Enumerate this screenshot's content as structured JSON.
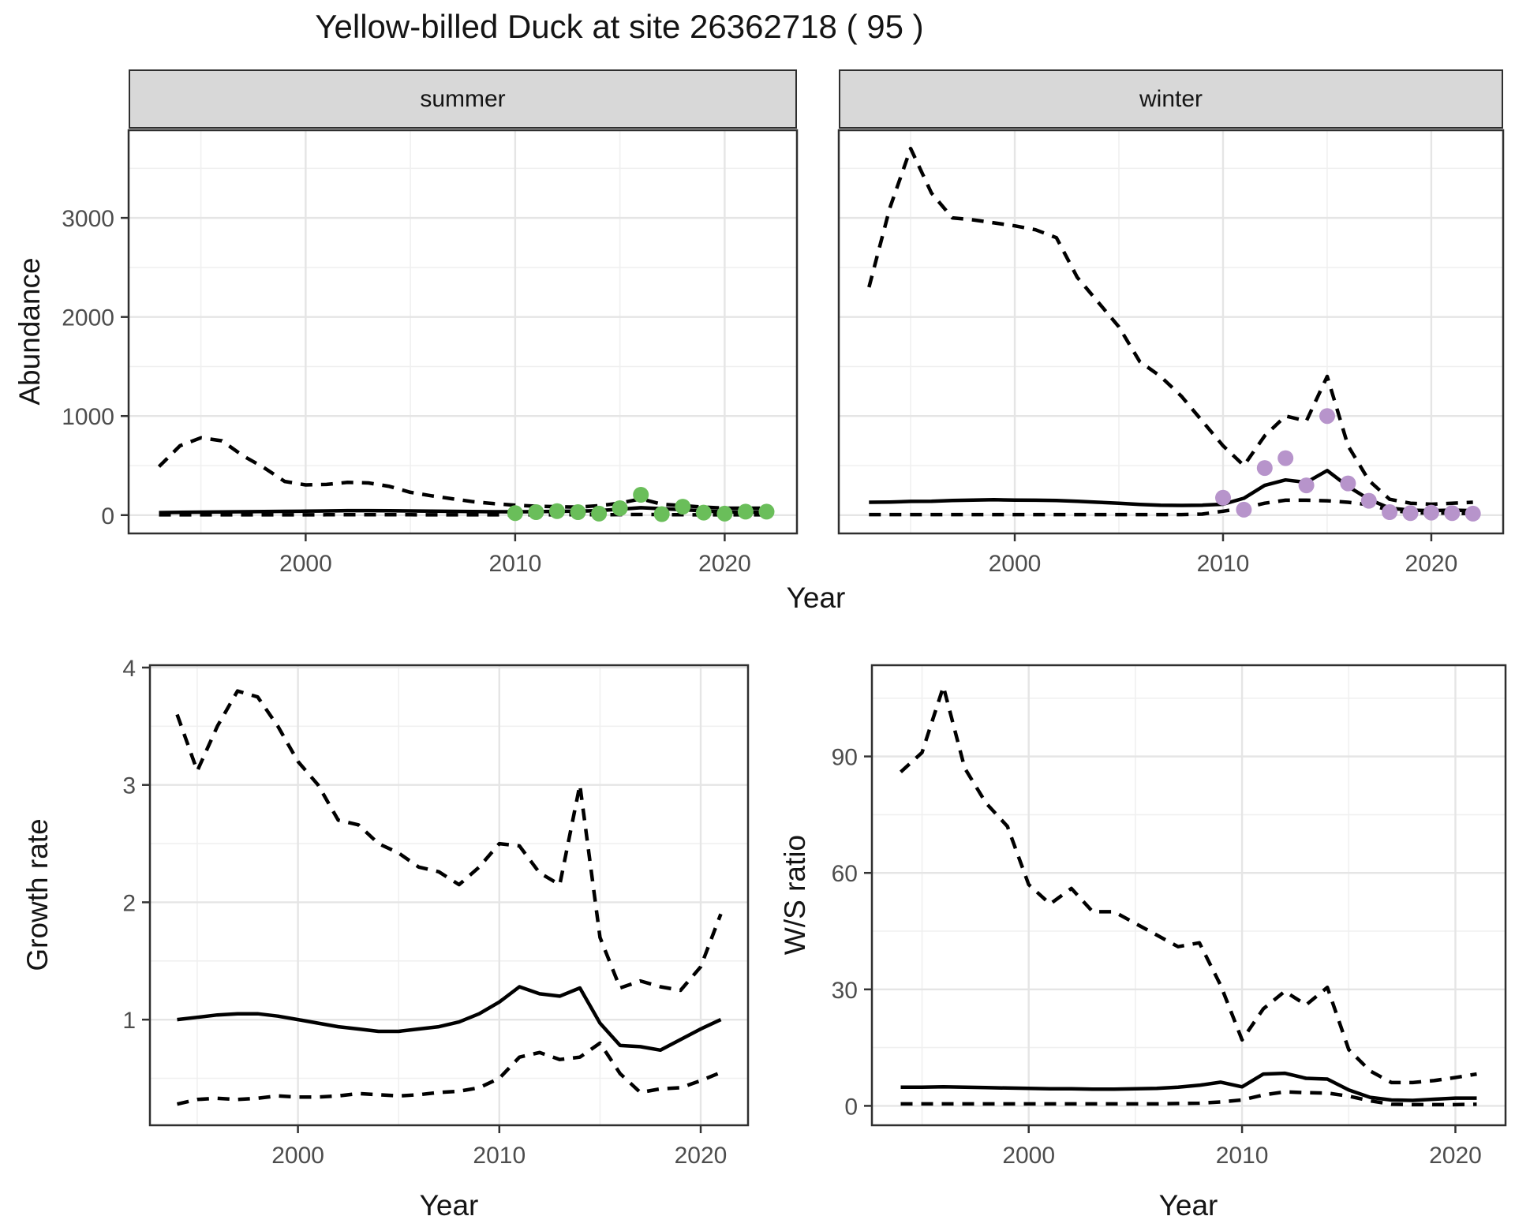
{
  "title": "Yellow-billed Duck at site 26362718 ( 95 )",
  "facets": {
    "summer_label": "summer",
    "winter_label": "winter"
  },
  "axes": {
    "abundance_label": "Abundance",
    "year_label": "Year",
    "growth_label": "Growth rate",
    "ws_label": "W/S ratio"
  },
  "colors": {
    "line": "#000000",
    "summer_points": "#6abe5a",
    "winter_points": "#b794cb",
    "grid_major": "#e5e5e5",
    "grid_minor": "#f0f0f0",
    "panel_border": "#2f2f2f",
    "tick": "#333333",
    "tick_text": "#4d4d4d",
    "strip_bg": "#d8d8d8"
  },
  "chart_data": [
    {
      "id": "abundance-summer",
      "type": "line",
      "title": "summer",
      "xlabel": "Year",
      "ylabel": "Abundance",
      "x": [
        1993,
        1994,
        1995,
        1996,
        1997,
        1998,
        1999,
        2000,
        2001,
        2002,
        2003,
        2004,
        2005,
        2006,
        2007,
        2008,
        2009,
        2010,
        2011,
        2012,
        2013,
        2014,
        2015,
        2016,
        2017,
        2018,
        2019,
        2020,
        2021,
        2022
      ],
      "xlim": [
        1991.55,
        2023.45
      ],
      "xticks": [
        2000,
        2010,
        2020
      ],
      "xminor": [
        1995,
        2005,
        2015
      ],
      "ylim": [
        -185,
        3885
      ],
      "yticks": [
        0,
        1000,
        2000,
        3000
      ],
      "yminor": [
        500,
        1500,
        2500,
        3500
      ],
      "grid": true,
      "legend": "none",
      "series": [
        {
          "name": "upper-ci",
          "style": "dashed",
          "values": [
            490,
            700,
            780,
            750,
            600,
            480,
            340,
            305,
            310,
            330,
            325,
            290,
            230,
            195,
            165,
            135,
            115,
            100,
            90,
            85,
            80,
            95,
            120,
            165,
            110,
            95,
            80,
            70,
            70,
            70
          ]
        },
        {
          "name": "predicted",
          "style": "solid",
          "values": [
            25,
            28,
            30,
            32,
            34,
            36,
            38,
            40,
            42,
            45,
            45,
            44,
            42,
            40,
            38,
            36,
            34,
            33,
            35,
            38,
            40,
            45,
            60,
            75,
            65,
            55,
            42,
            32,
            30,
            32
          ]
        },
        {
          "name": "lower-ci",
          "style": "dashed",
          "values": [
            3,
            3,
            3,
            3,
            3,
            3,
            3,
            3,
            4,
            4,
            4,
            4,
            4,
            3,
            3,
            3,
            3,
            3,
            3,
            4,
            4,
            4,
            5,
            6,
            5,
            4,
            3,
            3,
            3,
            3
          ]
        },
        {
          "name": "observed-counts",
          "style": "points",
          "color": "#6abe5a",
          "x": [
            2010,
            2011,
            2012,
            2013,
            2014,
            2015,
            2016,
            2017,
            2018,
            2019,
            2020,
            2021,
            2022
          ],
          "values": [
            20,
            30,
            40,
            30,
            15,
            70,
            205,
            10,
            85,
            25,
            15,
            35,
            35
          ]
        }
      ]
    },
    {
      "id": "abundance-winter",
      "type": "line",
      "title": "winter",
      "xlabel": "Year",
      "ylabel": "Abundance",
      "x": [
        1993,
        1994,
        1995,
        1996,
        1997,
        1998,
        1999,
        2000,
        2001,
        2002,
        2003,
        2004,
        2005,
        2006,
        2007,
        2008,
        2009,
        2010,
        2011,
        2012,
        2013,
        2014,
        2015,
        2016,
        2017,
        2018,
        2019,
        2020,
        2021,
        2022
      ],
      "xlim": [
        1991.55,
        2023.45
      ],
      "xticks": [
        2000,
        2010,
        2020
      ],
      "xminor": [
        1995,
        2005,
        2015
      ],
      "ylim": [
        -185,
        3885
      ],
      "yticks": [
        0,
        1000,
        2000,
        3000
      ],
      "yminor": [
        500,
        1500,
        2500,
        3500
      ],
      "grid": true,
      "legend": "none",
      "series": [
        {
          "name": "upper-ci",
          "style": "dashed",
          "values": [
            2300,
            3100,
            3700,
            3250,
            3000,
            2980,
            2950,
            2920,
            2880,
            2800,
            2400,
            2150,
            1900,
            1550,
            1400,
            1200,
            950,
            700,
            500,
            800,
            1000,
            950,
            1400,
            700,
            350,
            160,
            120,
            110,
            120,
            130
          ]
        },
        {
          "name": "predicted",
          "style": "solid",
          "values": [
            130,
            132,
            138,
            140,
            148,
            152,
            155,
            152,
            150,
            148,
            140,
            130,
            120,
            108,
            100,
            98,
            100,
            110,
            170,
            300,
            355,
            330,
            450,
            290,
            160,
            70,
            50,
            45,
            50,
            45
          ]
        },
        {
          "name": "lower-ci",
          "style": "dashed",
          "values": [
            5,
            5,
            5,
            5,
            5,
            5,
            5,
            5,
            5,
            5,
            5,
            5,
            5,
            5,
            5,
            5,
            10,
            40,
            70,
            120,
            150,
            150,
            145,
            130,
            105,
            50,
            25,
            20,
            20,
            15
          ]
        },
        {
          "name": "observed-counts",
          "style": "points",
          "color": "#b794cb",
          "x": [
            2010,
            2011,
            2012,
            2013,
            2014,
            2015,
            2016,
            2017,
            2018,
            2019,
            2020,
            2021,
            2022
          ],
          "values": [
            175,
            55,
            475,
            575,
            300,
            1000,
            320,
            145,
            30,
            20,
            25,
            20,
            15
          ]
        }
      ]
    },
    {
      "id": "growth-rate",
      "type": "line",
      "title": "",
      "xlabel": "Year",
      "ylabel": "Growth rate",
      "x": [
        1994,
        1995,
        1996,
        1997,
        1998,
        1999,
        2000,
        2001,
        2002,
        2003,
        2004,
        2005,
        2006,
        2007,
        2008,
        2009,
        2010,
        2011,
        2012,
        2013,
        2014,
        2015,
        2016,
        2017,
        2018,
        2019,
        2020,
        2021
      ],
      "xlim": [
        1992.65,
        2022.35
      ],
      "xticks": [
        2000,
        2010,
        2020
      ],
      "xminor": [
        1995,
        2005,
        2015
      ],
      "ylim": [
        0.1,
        4.02
      ],
      "yticks": [
        1,
        2,
        3,
        4
      ],
      "yminor": [
        0.5,
        1.5,
        2.5,
        3.5
      ],
      "grid": true,
      "legend": "none",
      "series": [
        {
          "name": "upper-ci",
          "style": "dashed",
          "values": [
            3.6,
            3.12,
            3.5,
            3.8,
            3.75,
            3.5,
            3.2,
            3.0,
            2.7,
            2.66,
            2.5,
            2.42,
            2.3,
            2.26,
            2.15,
            2.3,
            2.5,
            2.48,
            2.25,
            2.15,
            3.0,
            1.7,
            1.27,
            1.33,
            1.28,
            1.25,
            1.45,
            1.9
          ]
        },
        {
          "name": "predicted",
          "style": "solid",
          "values": [
            1.0,
            1.02,
            1.04,
            1.05,
            1.05,
            1.03,
            1.0,
            0.97,
            0.94,
            0.92,
            0.9,
            0.9,
            0.92,
            0.94,
            0.98,
            1.05,
            1.15,
            1.28,
            1.22,
            1.2,
            1.27,
            0.97,
            0.78,
            0.77,
            0.74,
            0.83,
            0.92,
            1.0
          ]
        },
        {
          "name": "lower-ci",
          "style": "dashed",
          "values": [
            0.28,
            0.32,
            0.33,
            0.32,
            0.33,
            0.35,
            0.34,
            0.34,
            0.35,
            0.37,
            0.36,
            0.35,
            0.36,
            0.38,
            0.39,
            0.42,
            0.5,
            0.68,
            0.72,
            0.66,
            0.68,
            0.8,
            0.54,
            0.38,
            0.41,
            0.42,
            0.48,
            0.55
          ]
        }
      ]
    },
    {
      "id": "ws-ratio",
      "type": "line",
      "title": "",
      "xlabel": "Year",
      "ylabel": "W/S ratio",
      "x": [
        1994,
        1995,
        1996,
        1997,
        1998,
        1999,
        2000,
        2001,
        2002,
        2003,
        2004,
        2005,
        2006,
        2007,
        2008,
        2009,
        2010,
        2011,
        2012,
        2013,
        2014,
        2015,
        2016,
        2017,
        2018,
        2019,
        2020,
        2021
      ],
      "xlim": [
        1992.65,
        2022.35
      ],
      "xticks": [
        2000,
        2010,
        2020
      ],
      "xminor": [
        1995,
        2005,
        2015
      ],
      "ylim": [
        -5,
        113.5
      ],
      "yticks": [
        0,
        30,
        60,
        90
      ],
      "yminor": [
        15,
        45,
        75,
        105
      ],
      "grid": true,
      "legend": "none",
      "series": [
        {
          "name": "upper-ci",
          "style": "dashed",
          "values": [
            86,
            91,
            108,
            87,
            78,
            72,
            57,
            52,
            56,
            50,
            50,
            47,
            44,
            41,
            42,
            31,
            17,
            25,
            29.5,
            26,
            30.5,
            14.5,
            9,
            6,
            6,
            6.5,
            7.3,
            8.2
          ]
        },
        {
          "name": "predicted",
          "style": "solid",
          "values": [
            4.8,
            4.8,
            4.9,
            4.8,
            4.7,
            4.6,
            4.5,
            4.4,
            4.4,
            4.3,
            4.3,
            4.4,
            4.5,
            4.8,
            5.3,
            6.1,
            4.9,
            8.2,
            8.4,
            7.1,
            6.9,
            4.1,
            2.2,
            1.5,
            1.4,
            1.7,
            2.0,
            2.0
          ]
        },
        {
          "name": "lower-ci",
          "style": "dashed",
          "values": [
            0.5,
            0.5,
            0.5,
            0.5,
            0.5,
            0.5,
            0.5,
            0.5,
            0.5,
            0.5,
            0.5,
            0.5,
            0.5,
            0.6,
            0.7,
            1.0,
            1.5,
            2.8,
            3.6,
            3.4,
            3.3,
            2.5,
            1.3,
            0.4,
            0.3,
            0.3,
            0.3,
            0.4
          ]
        }
      ]
    }
  ]
}
